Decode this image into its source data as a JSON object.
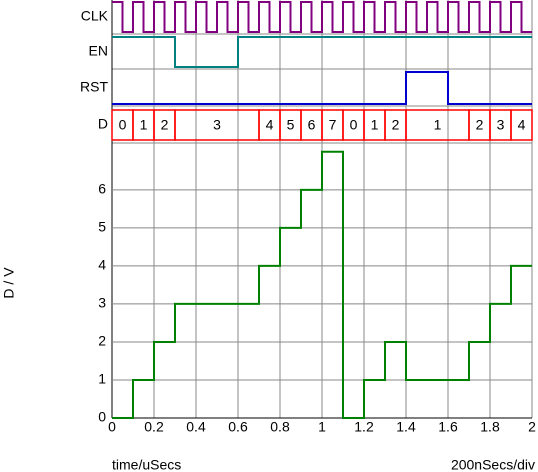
{
  "chart_data": {
    "type": "line",
    "step": true,
    "xlabel": "time/uSecs",
    "ylabel": "D / V",
    "scale_note": "200nSecs/div",
    "xlim": [
      0,
      2
    ],
    "ylim": [
      0,
      7.1
    ],
    "xticks": [
      0,
      0.2,
      0.4,
      0.6,
      0.8,
      1,
      1.2,
      1.4,
      1.6,
      1.8,
      2
    ],
    "yticks": [
      0,
      1,
      2,
      3,
      4,
      5,
      6
    ],
    "grid": true,
    "x": [
      0,
      0.1,
      0.2,
      0.3,
      0.4,
      0.5,
      0.6,
      0.7,
      0.8,
      0.9,
      1,
      1.1,
      1.2,
      1.3,
      1.4,
      1.5,
      1.6,
      1.7,
      1.8,
      1.9
    ],
    "values": [
      0,
      1,
      2,
      3,
      3,
      3,
      3,
      4,
      5,
      6,
      7,
      0,
      1,
      2,
      1,
      1,
      1,
      2,
      3,
      4
    ],
    "color": "#008000",
    "signals": [
      {
        "name": "CLK",
        "color": "#800080",
        "times": [
          0,
          0.05,
          0.1,
          0.15,
          0.2,
          0.25,
          0.3,
          0.35,
          0.4,
          0.45,
          0.5,
          0.55,
          0.6,
          0.65,
          0.7,
          0.75,
          0.8,
          0.85,
          0.9,
          0.95,
          1,
          1.05,
          1.1,
          1.15,
          1.2,
          1.25,
          1.3,
          1.35,
          1.4,
          1.45,
          1.5,
          1.55,
          1.6,
          1.65,
          1.7,
          1.75,
          1.8,
          1.85,
          1.9,
          1.95
        ],
        "levels": [
          1,
          0,
          1,
          0,
          1,
          0,
          1,
          0,
          1,
          0,
          1,
          0,
          1,
          0,
          1,
          0,
          1,
          0,
          1,
          0,
          1,
          0,
          1,
          0,
          1,
          0,
          1,
          0,
          1,
          0,
          1,
          0,
          1,
          0,
          1,
          0,
          1,
          0,
          1,
          0
        ]
      },
      {
        "name": "EN",
        "color": "#008080",
        "times": [
          0,
          0.3,
          0.6
        ],
        "levels": [
          1,
          0,
          1
        ]
      },
      {
        "name": "RST",
        "color": "#0000cc",
        "times": [
          0,
          1.4,
          1.6
        ],
        "levels": [
          0,
          1,
          0
        ]
      }
    ],
    "bus": {
      "name": "D",
      "color": "#ff0000",
      "times": [
        0,
        0.1,
        0.2,
        0.3,
        0.7,
        0.8,
        0.9,
        1,
        1.1,
        1.2,
        1.3,
        1.4,
        1.7,
        1.8,
        1.9
      ],
      "values": [
        0,
        1,
        2,
        3,
        4,
        5,
        6,
        7,
        0,
        1,
        2,
        1,
        2,
        3,
        4
      ]
    }
  }
}
